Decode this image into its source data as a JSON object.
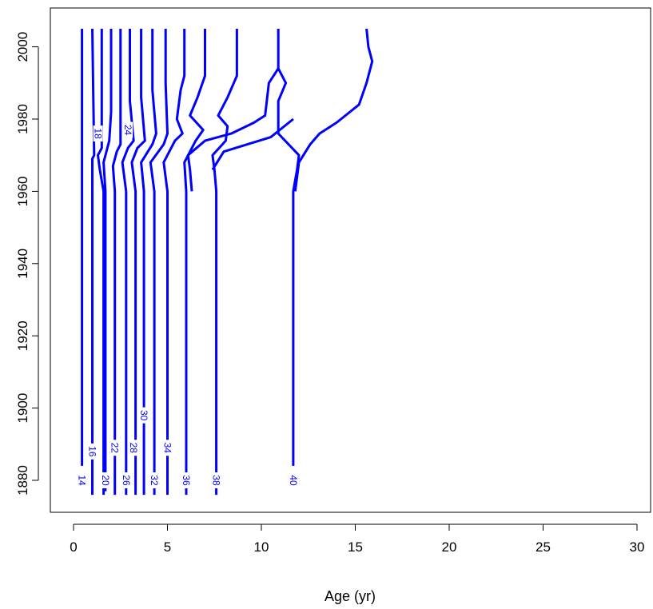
{
  "chart_data": {
    "type": "contour",
    "title": "",
    "xlabel": "Age (yr)",
    "ylabel": "",
    "xlim": [
      -1,
      31
    ],
    "ylim": [
      1870,
      2010
    ],
    "x_ticks": [
      0,
      5,
      10,
      15,
      20,
      25,
      30
    ],
    "y_ticks": [
      1880,
      1900,
      1920,
      1940,
      1960,
      1980,
      2000
    ],
    "grid": false,
    "legend": "none",
    "line_color": "#0000ff",
    "contours": [
      {
        "label": "14",
        "label_at": [
          0.45,
          1880
        ],
        "points": [
          [
            0.45,
            1884
          ],
          [
            0.45,
            2005
          ]
        ]
      },
      {
        "label": "16",
        "label_at": [
          1.0,
          1888
        ],
        "points": [
          [
            1.0,
            1876
          ],
          [
            1.0,
            1969
          ],
          [
            1.1,
            1970
          ],
          [
            1.0,
            2005
          ]
        ]
      },
      {
        "label": "18",
        "label_at": [
          1.3,
          1976
        ],
        "points": [
          [
            1.6,
            1876
          ],
          [
            1.6,
            1960
          ],
          [
            1.4,
            1966
          ],
          [
            1.3,
            1970
          ],
          [
            1.5,
            1972
          ],
          [
            1.5,
            1980
          ],
          [
            1.5,
            2005
          ]
        ]
      },
      {
        "label": "20",
        "label_at": [
          1.7,
          1880
        ],
        "points": [
          [
            1.7,
            1877
          ],
          [
            1.7,
            1960
          ],
          [
            1.6,
            1968
          ],
          [
            1.8,
            1972
          ],
          [
            1.9,
            1974
          ],
          [
            2.0,
            1982
          ],
          [
            2.0,
            2005
          ]
        ]
      },
      {
        "label": "22",
        "label_at": [
          2.2,
          1889
        ],
        "points": [
          [
            2.2,
            1876
          ],
          [
            2.2,
            1960
          ],
          [
            2.1,
            1967
          ],
          [
            2.3,
            1971
          ],
          [
            2.5,
            1973
          ],
          [
            2.5,
            1985
          ],
          [
            2.5,
            2005
          ]
        ]
      },
      {
        "label": "24",
        "label_at": [
          2.9,
          1977
        ],
        "points": [
          [
            2.8,
            1960
          ],
          [
            2.6,
            1968
          ],
          [
            2.9,
            1972
          ],
          [
            3.2,
            1974
          ],
          [
            3.0,
            1985
          ],
          [
            3.0,
            2005
          ]
        ]
      },
      {
        "label": "26",
        "label_at": [
          2.8,
          1880
        ],
        "points": [
          [
            2.8,
            1876
          ],
          [
            2.8,
            1960
          ]
        ]
      },
      {
        "label": "28",
        "label_at": [
          3.2,
          1889
        ],
        "points": [
          [
            3.3,
            1876
          ],
          [
            3.3,
            1960
          ],
          [
            3.1,
            1968
          ],
          [
            3.4,
            1972
          ],
          [
            3.8,
            1974
          ],
          [
            3.6,
            1986
          ],
          [
            3.6,
            2005
          ]
        ]
      },
      {
        "label": "30",
        "label_at": [
          3.75,
          1898
        ],
        "points": [
          [
            3.75,
            1876
          ],
          [
            3.75,
            1960
          ],
          [
            3.6,
            1968
          ],
          [
            4.2,
            1973
          ],
          [
            4.4,
            1976
          ],
          [
            4.2,
            1988
          ],
          [
            4.2,
            2005
          ]
        ]
      },
      {
        "label": "32",
        "label_at": [
          4.3,
          1880
        ],
        "points": [
          [
            4.3,
            1876
          ],
          [
            4.3,
            1960
          ],
          [
            4.1,
            1968
          ],
          [
            4.8,
            1973
          ],
          [
            5.0,
            1976
          ],
          [
            4.9,
            1990
          ],
          [
            4.9,
            2005
          ]
        ]
      },
      {
        "label": "34",
        "label_at": [
          5.0,
          1889
        ],
        "points": [
          [
            5.0,
            1876
          ],
          [
            5.0,
            1960
          ],
          [
            4.8,
            1968
          ],
          [
            5.4,
            1974
          ],
          [
            5.8,
            1976
          ],
          [
            5.5,
            1980
          ],
          [
            5.7,
            1988
          ],
          [
            5.9,
            1992
          ],
          [
            5.9,
            2005
          ]
        ]
      },
      {
        "label": "36",
        "label_at": [
          6.0,
          1880
        ],
        "points": [
          [
            6.0,
            1876
          ],
          [
            6.0,
            1960
          ],
          [
            5.9,
            1968
          ],
          [
            6.5,
            1974
          ],
          [
            6.9,
            1977
          ],
          [
            6.2,
            1981
          ],
          [
            6.6,
            1986
          ],
          [
            7.0,
            1992
          ],
          [
            7.0,
            2005
          ]
        ]
      },
      {
        "label": "38",
        "label_at": [
          7.6,
          1880
        ],
        "points": [
          [
            7.6,
            1876
          ],
          [
            7.6,
            1960
          ],
          [
            7.5,
            1966
          ],
          [
            7.4,
            1970
          ],
          [
            8.1,
            1974
          ],
          [
            8.2,
            1978
          ],
          [
            7.7,
            1981
          ],
          [
            8.2,
            1986
          ],
          [
            8.7,
            1992
          ],
          [
            8.7,
            2005
          ]
        ]
      },
      {
        "label": "40",
        "label_at": [
          11.7,
          1880
        ],
        "points": [
          [
            11.7,
            1884
          ],
          [
            11.7,
            1960
          ],
          [
            11.9,
            1966
          ],
          [
            12.0,
            1970
          ],
          [
            10.9,
            1976
          ],
          [
            10.9,
            1985
          ],
          [
            11.3,
            1990
          ],
          [
            10.9,
            1994
          ],
          [
            10.9,
            2005
          ]
        ]
      },
      {
        "label": "",
        "label_at": null,
        "points": [
          [
            6.3,
            1960
          ],
          [
            6.2,
            1966
          ],
          [
            6.1,
            1970
          ],
          [
            7.0,
            1974
          ],
          [
            8.4,
            1976
          ],
          [
            9.6,
            1979
          ],
          [
            10.2,
            1981
          ],
          [
            10.4,
            1990
          ],
          [
            10.9,
            1994
          ]
        ]
      },
      {
        "label": "",
        "label_at": null,
        "points": [
          [
            7.4,
            1966
          ],
          [
            8.0,
            1971
          ],
          [
            10.5,
            1975
          ],
          [
            11.7,
            1980
          ]
        ]
      },
      {
        "label": "",
        "label_at": null,
        "points": [
          [
            11.8,
            1960
          ],
          [
            12.0,
            1968
          ],
          [
            12.6,
            1973
          ],
          [
            13.1,
            1976
          ],
          [
            14.0,
            1979
          ],
          [
            15.2,
            1984
          ],
          [
            15.6,
            1990
          ],
          [
            15.9,
            1996
          ],
          [
            15.7,
            2000
          ],
          [
            15.6,
            2005
          ]
        ]
      }
    ]
  }
}
